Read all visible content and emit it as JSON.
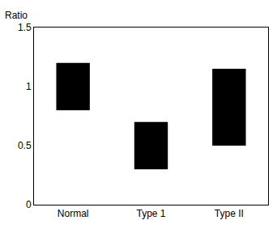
{
  "chart_data": {
    "type": "bar",
    "ylabel": "Ratio",
    "categories": [
      "Normal",
      "Type 1",
      "Type II"
    ],
    "low": [
      0.8,
      0.3,
      0.5
    ],
    "high": [
      1.2,
      0.7,
      1.15
    ],
    "color": "#000000",
    "ylim": [
      0,
      1.5
    ],
    "yticks": [
      0,
      0.5,
      1,
      1.5
    ],
    "grid": false
  }
}
